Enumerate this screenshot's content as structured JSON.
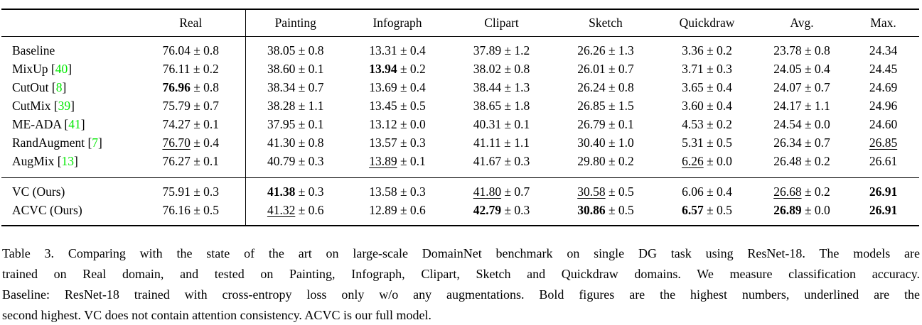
{
  "table": {
    "headers": [
      "",
      "Real",
      "Painting",
      "Infograph",
      "Clipart",
      "Sketch",
      "Quickdraw",
      "Avg.",
      "Max."
    ],
    "rows": [
      {
        "method": "Baseline",
        "cite": null,
        "group": "baseline",
        "cells": [
          {
            "v": "76.04",
            "pm": "0.8",
            "s": "n"
          },
          {
            "v": "38.05",
            "pm": "0.8",
            "s": "n"
          },
          {
            "v": "13.31",
            "pm": "0.4",
            "s": "n"
          },
          {
            "v": "37.89",
            "pm": "1.2",
            "s": "n"
          },
          {
            "v": "26.26",
            "pm": "1.3",
            "s": "n"
          },
          {
            "v": "3.36",
            "pm": "0.2",
            "s": "n"
          },
          {
            "v": "23.78",
            "pm": "0.8",
            "s": "n"
          },
          {
            "v": "24.34",
            "pm": null,
            "s": "n"
          }
        ]
      },
      {
        "method": "MixUp",
        "cite": "40",
        "group": "baseline",
        "cells": [
          {
            "v": "76.11",
            "pm": "0.2",
            "s": "n"
          },
          {
            "v": "38.60",
            "pm": "0.1",
            "s": "n"
          },
          {
            "v": "13.94",
            "pm": "0.2",
            "s": "b"
          },
          {
            "v": "38.02",
            "pm": "0.8",
            "s": "n"
          },
          {
            "v": "26.01",
            "pm": "0.7",
            "s": "n"
          },
          {
            "v": "3.71",
            "pm": "0.3",
            "s": "n"
          },
          {
            "v": "24.05",
            "pm": "0.4",
            "s": "n"
          },
          {
            "v": "24.45",
            "pm": null,
            "s": "n"
          }
        ]
      },
      {
        "method": "CutOut",
        "cite": "8",
        "group": "baseline",
        "cells": [
          {
            "v": "76.96",
            "pm": "0.8",
            "s": "b"
          },
          {
            "v": "38.34",
            "pm": "0.7",
            "s": "n"
          },
          {
            "v": "13.69",
            "pm": "0.4",
            "s": "n"
          },
          {
            "v": "38.44",
            "pm": "1.3",
            "s": "n"
          },
          {
            "v": "26.24",
            "pm": "0.8",
            "s": "n"
          },
          {
            "v": "3.65",
            "pm": "0.4",
            "s": "n"
          },
          {
            "v": "24.07",
            "pm": "0.7",
            "s": "n"
          },
          {
            "v": "24.69",
            "pm": null,
            "s": "n"
          }
        ]
      },
      {
        "method": "CutMix",
        "cite": "39",
        "group": "baseline",
        "cells": [
          {
            "v": "75.79",
            "pm": "0.7",
            "s": "n"
          },
          {
            "v": "38.28",
            "pm": "1.1",
            "s": "n"
          },
          {
            "v": "13.45",
            "pm": "0.5",
            "s": "n"
          },
          {
            "v": "38.65",
            "pm": "1.8",
            "s": "n"
          },
          {
            "v": "26.85",
            "pm": "1.5",
            "s": "n"
          },
          {
            "v": "3.60",
            "pm": "0.4",
            "s": "n"
          },
          {
            "v": "24.17",
            "pm": "1.1",
            "s": "n"
          },
          {
            "v": "24.96",
            "pm": null,
            "s": "n"
          }
        ]
      },
      {
        "method": "ME-ADA",
        "cite": "41",
        "group": "baseline",
        "cells": [
          {
            "v": "74.27",
            "pm": "0.1",
            "s": "n"
          },
          {
            "v": "37.95",
            "pm": "0.1",
            "s": "n"
          },
          {
            "v": "13.12",
            "pm": "0.0",
            "s": "n"
          },
          {
            "v": "40.31",
            "pm": "0.1",
            "s": "n"
          },
          {
            "v": "26.79",
            "pm": "0.1",
            "s": "n"
          },
          {
            "v": "4.53",
            "pm": "0.2",
            "s": "n"
          },
          {
            "v": "24.54",
            "pm": "0.0",
            "s": "n"
          },
          {
            "v": "24.60",
            "pm": null,
            "s": "n"
          }
        ]
      },
      {
        "method": "RandAugment",
        "cite": "7",
        "group": "baseline",
        "cells": [
          {
            "v": "76.70",
            "pm": "0.4",
            "s": "u"
          },
          {
            "v": "41.30",
            "pm": "0.8",
            "s": "n"
          },
          {
            "v": "13.57",
            "pm": "0.3",
            "s": "n"
          },
          {
            "v": "41.11",
            "pm": "1.1",
            "s": "n"
          },
          {
            "v": "30.40",
            "pm": "1.0",
            "s": "n"
          },
          {
            "v": "5.31",
            "pm": "0.5",
            "s": "n"
          },
          {
            "v": "26.34",
            "pm": "0.7",
            "s": "n"
          },
          {
            "v": "26.85",
            "pm": null,
            "s": "u"
          }
        ]
      },
      {
        "method": "AugMix",
        "cite": "13",
        "group": "baseline",
        "cells": [
          {
            "v": "76.27",
            "pm": "0.1",
            "s": "n"
          },
          {
            "v": "40.79",
            "pm": "0.3",
            "s": "n"
          },
          {
            "v": "13.89",
            "pm": "0.1",
            "s": "u"
          },
          {
            "v": "41.67",
            "pm": "0.3",
            "s": "n"
          },
          {
            "v": "29.80",
            "pm": "0.2",
            "s": "n"
          },
          {
            "v": "6.26",
            "pm": "0.0",
            "s": "u"
          },
          {
            "v": "26.48",
            "pm": "0.2",
            "s": "n"
          },
          {
            "v": "26.61",
            "pm": null,
            "s": "n"
          }
        ]
      },
      {
        "method": "VC (Ours)",
        "cite": null,
        "group": "ours",
        "cells": [
          {
            "v": "75.91",
            "pm": "0.3",
            "s": "n"
          },
          {
            "v": "41.38",
            "pm": "0.3",
            "s": "b"
          },
          {
            "v": "13.58",
            "pm": "0.3",
            "s": "n"
          },
          {
            "v": "41.80",
            "pm": "0.7",
            "s": "u"
          },
          {
            "v": "30.58",
            "pm": "0.5",
            "s": "u"
          },
          {
            "v": "6.06",
            "pm": "0.4",
            "s": "n"
          },
          {
            "v": "26.68",
            "pm": "0.2",
            "s": "u"
          },
          {
            "v": "26.91",
            "pm": null,
            "s": "b"
          }
        ]
      },
      {
        "method": "ACVC (Ours)",
        "cite": null,
        "group": "ours",
        "cells": [
          {
            "v": "76.16",
            "pm": "0.5",
            "s": "n"
          },
          {
            "v": "41.32",
            "pm": "0.6",
            "s": "u"
          },
          {
            "v": "12.89",
            "pm": "0.6",
            "s": "n"
          },
          {
            "v": "42.79",
            "pm": "0.3",
            "s": "b"
          },
          {
            "v": "30.86",
            "pm": "0.5",
            "s": "b"
          },
          {
            "v": "6.57",
            "pm": "0.5",
            "s": "b"
          },
          {
            "v": "26.89",
            "pm": "0.0",
            "s": "b"
          },
          {
            "v": "26.91",
            "pm": null,
            "s": "b"
          }
        ]
      }
    ]
  },
  "caption": {
    "lines": [
      "Table 3. Comparing with the state of the art on large-scale DomainNet benchmark on single DG task using ResNet-18. The models are",
      "trained on Real domain, and tested on Painting, Infograph, Clipart, Sketch and Quickdraw domains. We measure classification accuracy.",
      "Baseline: ResNet-18 trained with cross-entropy loss only w/o any augmentations. Bold figures are the highest numbers, underlined are the",
      "second highest. VC does not contain attention consistency. ACVC is our full model."
    ]
  },
  "colors": {
    "citation_green": "#00e800",
    "text": "#000000",
    "background": "#ffffff"
  },
  "plus_minus_symbol": "±"
}
